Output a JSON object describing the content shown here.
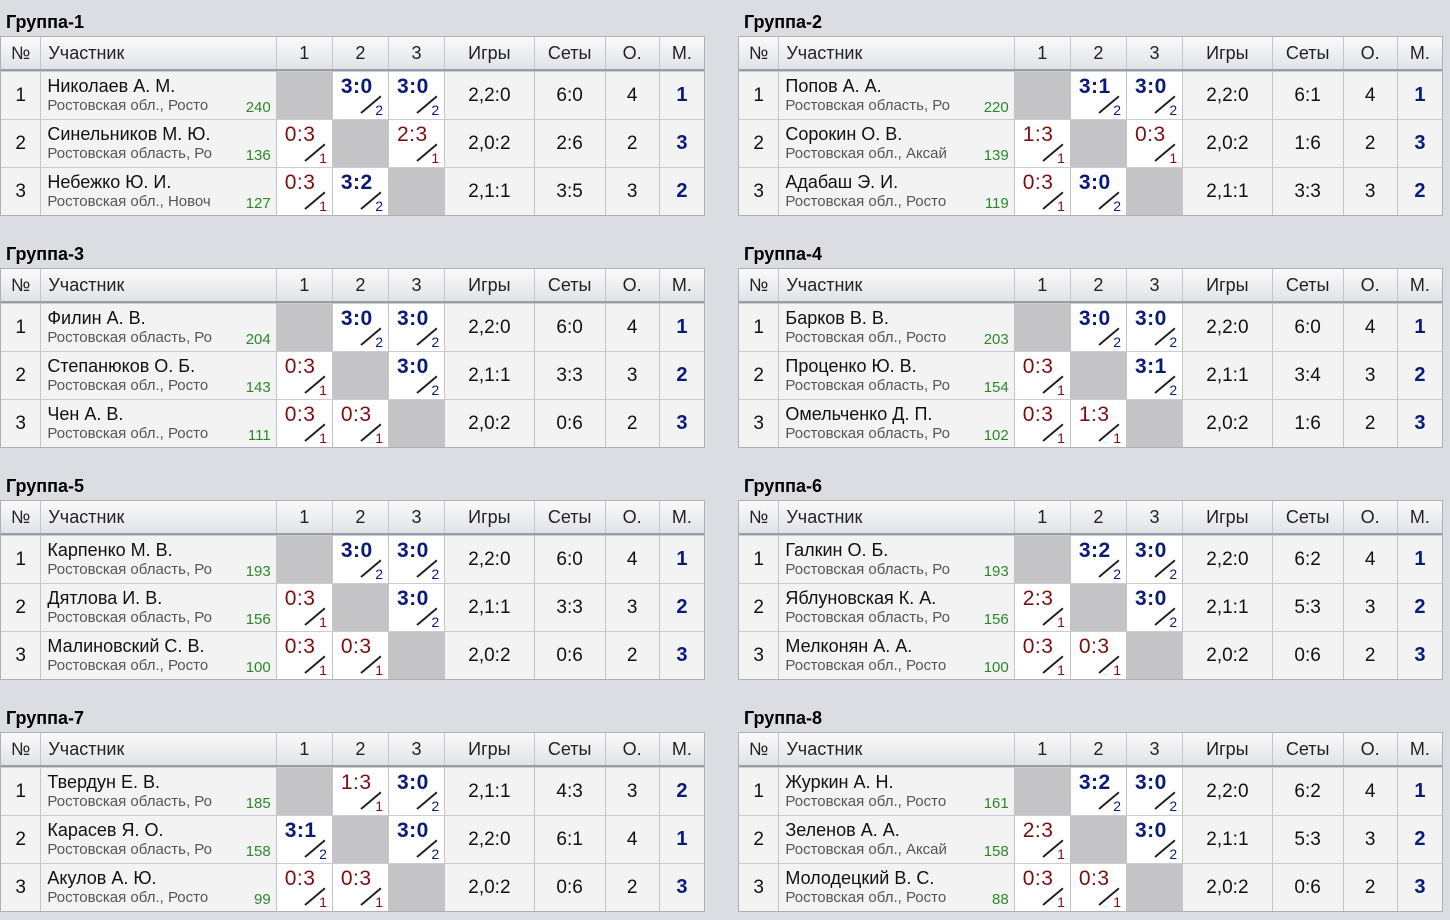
{
  "headers": {
    "num": "№",
    "participant": "Участник",
    "c1": "1",
    "c2": "2",
    "c3": "3",
    "games": "Игры",
    "sets": "Сеты",
    "points": "О.",
    "place": "М."
  },
  "groups": [
    {
      "title": "Группа-1",
      "rows": [
        {
          "n": "1",
          "name": "Николаев А. М.",
          "region": "Ростовская обл., Росто",
          "rating": "240",
          "m": [
            null,
            {
              "s": "3:0",
              "g": "2",
              "r": "win"
            },
            {
              "s": "3:0",
              "g": "2",
              "r": "win"
            }
          ],
          "games": "2,2:0",
          "sets": "6:0",
          "points": "4",
          "place": "1"
        },
        {
          "n": "2",
          "name": "Синельников М. Ю.",
          "region": "Ростовская область, Ро",
          "rating": "136",
          "m": [
            {
              "s": "0:3",
              "g": "1",
              "r": "loss"
            },
            null,
            {
              "s": "2:3",
              "g": "1",
              "r": "loss"
            }
          ],
          "games": "2,0:2",
          "sets": "2:6",
          "points": "2",
          "place": "3"
        },
        {
          "n": "3",
          "name": "Небежко Ю. И.",
          "region": "Ростовская обл., Новоч",
          "rating": "127",
          "m": [
            {
              "s": "0:3",
              "g": "1",
              "r": "loss"
            },
            {
              "s": "3:2",
              "g": "2",
              "r": "win"
            },
            null
          ],
          "games": "2,1:1",
          "sets": "3:5",
          "points": "3",
          "place": "2"
        }
      ]
    },
    {
      "title": "Группа-2",
      "rows": [
        {
          "n": "1",
          "name": "Попов А. А.",
          "region": "Ростовская область, Ро",
          "rating": "220",
          "m": [
            null,
            {
              "s": "3:1",
              "g": "2",
              "r": "win"
            },
            {
              "s": "3:0",
              "g": "2",
              "r": "win"
            }
          ],
          "games": "2,2:0",
          "sets": "6:1",
          "points": "4",
          "place": "1"
        },
        {
          "n": "2",
          "name": "Сорокин О. В.",
          "region": "Ростовская обл., Аксай",
          "rating": "139",
          "m": [
            {
              "s": "1:3",
              "g": "1",
              "r": "loss"
            },
            null,
            {
              "s": "0:3",
              "g": "1",
              "r": "loss"
            }
          ],
          "games": "2,0:2",
          "sets": "1:6",
          "points": "2",
          "place": "3"
        },
        {
          "n": "3",
          "name": "Адабаш Э. И.",
          "region": "Ростовская обл., Росто",
          "rating": "119",
          "m": [
            {
              "s": "0:3",
              "g": "1",
              "r": "loss"
            },
            {
              "s": "3:0",
              "g": "2",
              "r": "win"
            },
            null
          ],
          "games": "2,1:1",
          "sets": "3:3",
          "points": "3",
          "place": "2"
        }
      ]
    },
    {
      "title": "Группа-3",
      "rows": [
        {
          "n": "1",
          "name": "Филин А. В.",
          "region": "Ростовская область, Ро",
          "rating": "204",
          "m": [
            null,
            {
              "s": "3:0",
              "g": "2",
              "r": "win"
            },
            {
              "s": "3:0",
              "g": "2",
              "r": "win"
            }
          ],
          "games": "2,2:0",
          "sets": "6:0",
          "points": "4",
          "place": "1"
        },
        {
          "n": "2",
          "name": "Степанюков О. Б.",
          "region": "Ростовская обл., Росто",
          "rating": "143",
          "m": [
            {
              "s": "0:3",
              "g": "1",
              "r": "loss"
            },
            null,
            {
              "s": "3:0",
              "g": "2",
              "r": "win"
            }
          ],
          "games": "2,1:1",
          "sets": "3:3",
          "points": "3",
          "place": "2"
        },
        {
          "n": "3",
          "name": "Чен А. В.",
          "region": "Ростовская обл., Росто",
          "rating": "111",
          "m": [
            {
              "s": "0:3",
              "g": "1",
              "r": "loss"
            },
            {
              "s": "0:3",
              "g": "1",
              "r": "loss"
            },
            null
          ],
          "games": "2,0:2",
          "sets": "0:6",
          "points": "2",
          "place": "3"
        }
      ]
    },
    {
      "title": "Группа-4",
      "rows": [
        {
          "n": "1",
          "name": "Барков В. В.",
          "region": "Ростовская обл., Росто",
          "rating": "203",
          "m": [
            null,
            {
              "s": "3:0",
              "g": "2",
              "r": "win"
            },
            {
              "s": "3:0",
              "g": "2",
              "r": "win"
            }
          ],
          "games": "2,2:0",
          "sets": "6:0",
          "points": "4",
          "place": "1"
        },
        {
          "n": "2",
          "name": "Проценко Ю. В.",
          "region": "Ростовская область, Ро",
          "rating": "154",
          "m": [
            {
              "s": "0:3",
              "g": "1",
              "r": "loss"
            },
            null,
            {
              "s": "3:1",
              "g": "2",
              "r": "win"
            }
          ],
          "games": "2,1:1",
          "sets": "3:4",
          "points": "3",
          "place": "2"
        },
        {
          "n": "3",
          "name": "Омельченко Д. П.",
          "region": "Ростовская область, Ро",
          "rating": "102",
          "m": [
            {
              "s": "0:3",
              "g": "1",
              "r": "loss"
            },
            {
              "s": "1:3",
              "g": "1",
              "r": "loss"
            },
            null
          ],
          "games": "2,0:2",
          "sets": "1:6",
          "points": "2",
          "place": "3"
        }
      ]
    },
    {
      "title": "Группа-5",
      "rows": [
        {
          "n": "1",
          "name": "Карпенко М. В.",
          "region": "Ростовская область, Ро",
          "rating": "193",
          "m": [
            null,
            {
              "s": "3:0",
              "g": "2",
              "r": "win"
            },
            {
              "s": "3:0",
              "g": "2",
              "r": "win"
            }
          ],
          "games": "2,2:0",
          "sets": "6:0",
          "points": "4",
          "place": "1"
        },
        {
          "n": "2",
          "name": "Дятлова И. В.",
          "region": "Ростовская область, Ро",
          "rating": "156",
          "m": [
            {
              "s": "0:3",
              "g": "1",
              "r": "loss"
            },
            null,
            {
              "s": "3:0",
              "g": "2",
              "r": "win"
            }
          ],
          "games": "2,1:1",
          "sets": "3:3",
          "points": "3",
          "place": "2"
        },
        {
          "n": "3",
          "name": "Малиновский С. В.",
          "region": "Ростовская обл., Росто",
          "rating": "100",
          "m": [
            {
              "s": "0:3",
              "g": "1",
              "r": "loss"
            },
            {
              "s": "0:3",
              "g": "1",
              "r": "loss"
            },
            null
          ],
          "games": "2,0:2",
          "sets": "0:6",
          "points": "2",
          "place": "3"
        }
      ]
    },
    {
      "title": "Группа-6",
      "rows": [
        {
          "n": "1",
          "name": "Галкин О. Б.",
          "region": "Ростовская область, Ро",
          "rating": "193",
          "m": [
            null,
            {
              "s": "3:2",
              "g": "2",
              "r": "win"
            },
            {
              "s": "3:0",
              "g": "2",
              "r": "win"
            }
          ],
          "games": "2,2:0",
          "sets": "6:2",
          "points": "4",
          "place": "1"
        },
        {
          "n": "2",
          "name": "Яблуновская К. А.",
          "region": "Ростовская область, Ро",
          "rating": "156",
          "m": [
            {
              "s": "2:3",
              "g": "1",
              "r": "loss"
            },
            null,
            {
              "s": "3:0",
              "g": "2",
              "r": "win"
            }
          ],
          "games": "2,1:1",
          "sets": "5:3",
          "points": "3",
          "place": "2"
        },
        {
          "n": "3",
          "name": "Мелконян А. А.",
          "region": "Ростовская обл., Росто",
          "rating": "100",
          "m": [
            {
              "s": "0:3",
              "g": "1",
              "r": "loss"
            },
            {
              "s": "0:3",
              "g": "1",
              "r": "loss"
            },
            null
          ],
          "games": "2,0:2",
          "sets": "0:6",
          "points": "2",
          "place": "3"
        }
      ]
    },
    {
      "title": "Группа-7",
      "rows": [
        {
          "n": "1",
          "name": "Твердун Е. В.",
          "region": "Ростовская область, Ро",
          "rating": "185",
          "m": [
            null,
            {
              "s": "1:3",
              "g": "1",
              "r": "loss"
            },
            {
              "s": "3:0",
              "g": "2",
              "r": "win"
            }
          ],
          "games": "2,1:1",
          "sets": "4:3",
          "points": "3",
          "place": "2"
        },
        {
          "n": "2",
          "name": "Карасев Я. О.",
          "region": "Ростовская область, Ро",
          "rating": "158",
          "m": [
            {
              "s": "3:1",
              "g": "2",
              "r": "win"
            },
            null,
            {
              "s": "3:0",
              "g": "2",
              "r": "win"
            }
          ],
          "games": "2,2:0",
          "sets": "6:1",
          "points": "4",
          "place": "1"
        },
        {
          "n": "3",
          "name": "Акулов А. Ю.",
          "region": "Ростовская обл., Росто",
          "rating": "99",
          "m": [
            {
              "s": "0:3",
              "g": "1",
              "r": "loss"
            },
            {
              "s": "0:3",
              "g": "1",
              "r": "loss"
            },
            null
          ],
          "games": "2,0:2",
          "sets": "0:6",
          "points": "2",
          "place": "3"
        }
      ]
    },
    {
      "title": "Группа-8",
      "rows": [
        {
          "n": "1",
          "name": "Журкин А. Н.",
          "region": "Ростовская обл., Росто",
          "rating": "161",
          "m": [
            null,
            {
              "s": "3:2",
              "g": "2",
              "r": "win"
            },
            {
              "s": "3:0",
              "g": "2",
              "r": "win"
            }
          ],
          "games": "2,2:0",
          "sets": "6:2",
          "points": "4",
          "place": "1"
        },
        {
          "n": "2",
          "name": "Зеленов А. А.",
          "region": "Ростовская обл., Аксай",
          "rating": "158",
          "m": [
            {
              "s": "2:3",
              "g": "1",
              "r": "loss"
            },
            null,
            {
              "s": "3:0",
              "g": "2",
              "r": "win"
            }
          ],
          "games": "2,1:1",
          "sets": "5:3",
          "points": "3",
          "place": "2"
        },
        {
          "n": "3",
          "name": "Молодецкий В. С.",
          "region": "Ростовская обл., Росто",
          "rating": "88",
          "m": [
            {
              "s": "0:3",
              "g": "1",
              "r": "loss"
            },
            {
              "s": "0:3",
              "g": "1",
              "r": "loss"
            },
            null
          ],
          "games": "2,0:2",
          "sets": "0:6",
          "points": "2",
          "place": "3"
        }
      ]
    }
  ]
}
